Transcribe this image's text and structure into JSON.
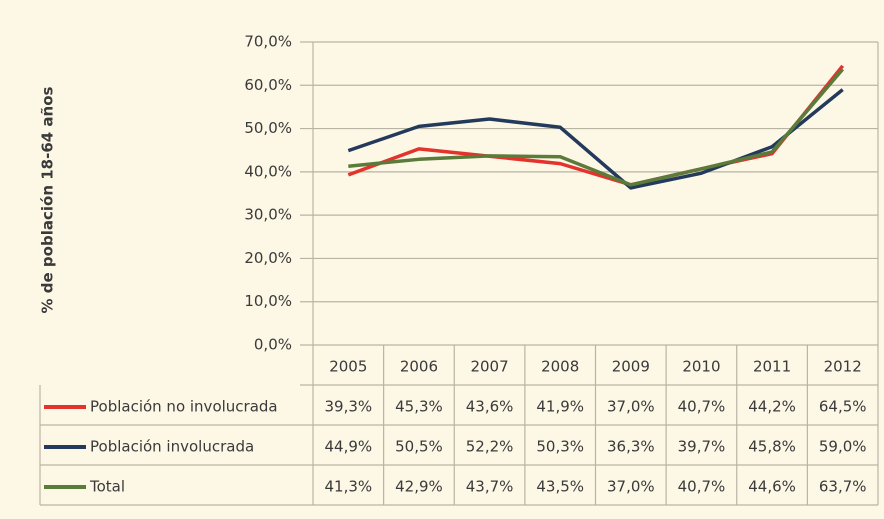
{
  "chart_data": {
    "type": "line",
    "y_label": "% de población 18-64 años",
    "categories": [
      "2005",
      "2006",
      "2007",
      "2008",
      "2009",
      "2010",
      "2011",
      "2012"
    ],
    "series": [
      {
        "name": "Población no involucrada",
        "color": "#e3332c",
        "values": [
          39.3,
          45.3,
          43.6,
          41.9,
          37.0,
          40.7,
          44.2,
          64.5
        ],
        "value_labels": [
          "39,3%",
          "45,3%",
          "43,6%",
          "41,9%",
          "37,0%",
          "40,7%",
          "44,2%",
          "64,5%"
        ]
      },
      {
        "name": "Población involucrada",
        "color": "#243a5c",
        "values": [
          44.9,
          50.5,
          52.2,
          50.3,
          36.3,
          39.7,
          45.8,
          59.0
        ],
        "value_labels": [
          "44,9%",
          "50,5%",
          "52,2%",
          "50,3%",
          "36,3%",
          "39,7%",
          "45,8%",
          "59,0%"
        ]
      },
      {
        "name": "Total",
        "color": "#5b7b3a",
        "values": [
          41.3,
          42.9,
          43.7,
          43.5,
          37.0,
          40.7,
          44.6,
          63.7
        ],
        "value_labels": [
          "41,3%",
          "42,9%",
          "43,7%",
          "43,5%",
          "37,0%",
          "40,7%",
          "44,6%",
          "63,7%"
        ]
      }
    ],
    "ylim": [
      0,
      70
    ],
    "yticks": [
      {
        "value": 0,
        "label": "0,0%"
      },
      {
        "value": 10,
        "label": "10,0%"
      },
      {
        "value": 20,
        "label": "20,0%"
      },
      {
        "value": 30,
        "label": "30,0%"
      },
      {
        "value": 40,
        "label": "40,0%"
      },
      {
        "value": 50,
        "label": "50,0%"
      },
      {
        "value": 60,
        "label": "60,0%"
      },
      {
        "value": 70,
        "label": "70,0%"
      }
    ],
    "grid": true
  }
}
